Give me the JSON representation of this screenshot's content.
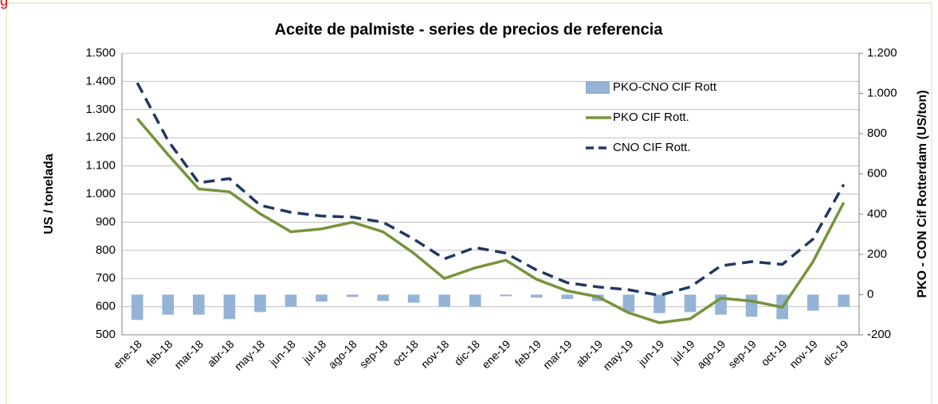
{
  "corner_text": "g",
  "chart_data": {
    "type": "bar_line",
    "title": "Aceite de palmiste - series de precios de referencia",
    "ylabel": "US / tonelada",
    "y2label": "PKO - CON Cif Rotterdam (US/ton)",
    "categories": [
      "ene-18",
      "feb-18",
      "mar-18",
      "abr-18",
      "may-18",
      "jun-18",
      "jul-18",
      "ago-18",
      "sep-18",
      "oct-18",
      "nov-18",
      "dic-18",
      "ene-19",
      "feb-19",
      "mar-19",
      "abr-19",
      "may-19",
      "jun-19",
      "jul-19",
      "ago-19",
      "sep-19",
      "oct-19",
      "nov-19",
      "dic-19"
    ],
    "series": [
      {
        "name": "PKO-CNO CIF Rott",
        "type": "bar",
        "axis": "y2",
        "color": "#95b3d7",
        "values": [
          -126,
          -100,
          -100,
          -122,
          -87,
          -60,
          -35,
          -12,
          -32,
          -40,
          -60,
          -60,
          -8,
          -15,
          -22,
          -32,
          -87,
          -92,
          -87,
          -100,
          -110,
          -122,
          -80,
          -60
        ]
      },
      {
        "name": "PKO CIF Rott.",
        "type": "line",
        "color": "#77933c",
        "values": [
          1268,
          1140,
          1018,
          1008,
          930,
          866,
          876,
          900,
          866,
          790,
          700,
          738,
          765,
          697,
          656,
          635,
          578,
          543,
          557,
          630,
          620,
          598,
          760,
          970
        ]
      },
      {
        "name": "CNO CIF Rott.",
        "type": "line",
        "dash": true,
        "color": "#1f3864",
        "values": [
          1395,
          1190,
          1040,
          1055,
          960,
          935,
          922,
          918,
          900,
          840,
          770,
          810,
          790,
          730,
          685,
          670,
          660,
          640,
          670,
          745,
          760,
          750,
          840,
          1034
        ]
      }
    ],
    "ylim": [
      500,
      1500
    ],
    "yticks": [
      500,
      600,
      700,
      800,
      900,
      {
        "value": 1000,
        "label": "1.000"
      },
      {
        "value": 1100,
        "label": "1.100"
      },
      {
        "value": 1200,
        "label": "1.200"
      },
      {
        "value": 1300,
        "label": "1.300"
      },
      {
        "value": 1400,
        "label": "1.400"
      },
      {
        "value": 1500,
        "label": "1.500"
      }
    ],
    "y2lim": [
      -200,
      1200
    ],
    "y2ticks": [
      -200,
      0,
      200,
      400,
      600,
      800,
      {
        "value": 1000,
        "label": "1.000"
      },
      {
        "value": 1200,
        "label": "1.200"
      }
    ],
    "grid": true,
    "legend": "upper right"
  }
}
